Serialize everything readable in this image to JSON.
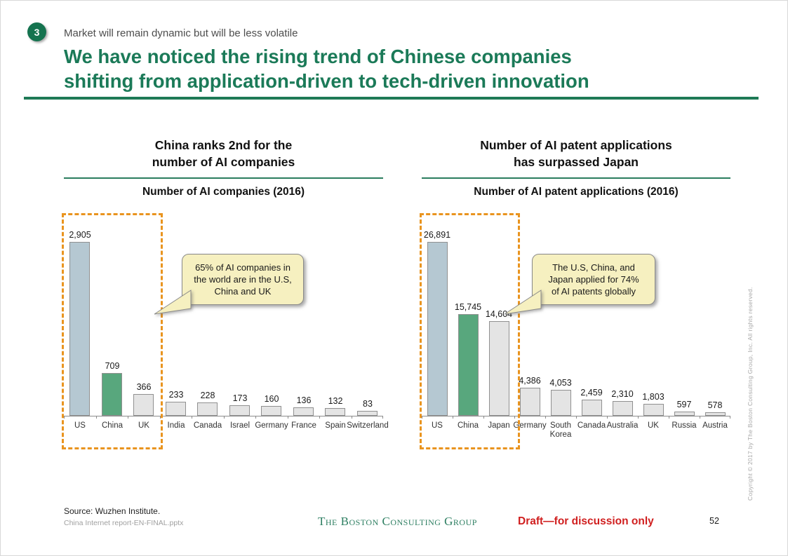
{
  "header": {
    "badge": "3",
    "eyebrow": "Market will remain dynamic but will be less volatile",
    "title_lines": [
      "We have noticed the rising trend of Chinese companies",
      "shifting from application-driven to tech-driven innovation"
    ]
  },
  "colors": {
    "accent_green": "#1b7a58",
    "rule_green": "#1e7a56",
    "bar_blue": "#b5c8d2",
    "bar_green": "#58a77d",
    "bar_gray": "#e4e4e4",
    "bar_border": "#909090",
    "highlight_dash_orange": "#e9941f",
    "callout_bg": "#f6f0c0",
    "draft_red": "#d01f1f"
  },
  "chart_data": [
    {
      "type": "bar",
      "title": "China ranks 2nd for the number of AI companies",
      "heading_lines": [
        "China ranks 2nd for the",
        "number of AI companies"
      ],
      "axis_title": "Number of AI companies (2016)",
      "xlabel": "",
      "ylabel": "",
      "categories": [
        "US",
        "China",
        "UK",
        "India",
        "Canada",
        "Israel",
        "Germany",
        "France",
        "Spain",
        "Switzerland"
      ],
      "values": [
        2905,
        709,
        366,
        233,
        228,
        173,
        160,
        136,
        132,
        83
      ],
      "value_labels": [
        "2,905",
        "709",
        "366",
        "233",
        "228",
        "173",
        "160",
        "136",
        "132",
        "83"
      ],
      "ylim": [
        0,
        2905
      ],
      "grid": false,
      "highlight_count": 3,
      "callout": "65% of AI companies in the world are in the U.S, China and UK",
      "callout_lines": [
        "65% of AI companies in",
        "the world are in the U.S,",
        "China and UK"
      ]
    },
    {
      "type": "bar",
      "title": "Number of AI patent applications has surpassed Japan",
      "heading_lines": [
        "Number of AI patent applications",
        "has surpassed Japan"
      ],
      "axis_title": "Number of AI patent applications (2016)",
      "xlabel": "",
      "ylabel": "",
      "categories": [
        "US",
        "China",
        "Japan",
        "Germany",
        "South\nKorea",
        "Canada",
        "Australia",
        "UK",
        "Russia",
        "Austria"
      ],
      "values": [
        26891,
        15745,
        14604,
        4386,
        4053,
        2459,
        2310,
        1803,
        597,
        578
      ],
      "value_labels": [
        "26,891",
        "15,745",
        "14,604",
        "4,386",
        "4,053",
        "2,459",
        "2,310",
        "1,803",
        "597",
        "578"
      ],
      "ylim": [
        0,
        26891
      ],
      "grid": false,
      "highlight_count": 3,
      "callout": "The U.S, China, and Japan applied for 74% of AI patents globally",
      "callout_lines": [
        "The U.S, China, and",
        "Japan applied for 74%",
        "of AI patents globally"
      ]
    }
  ],
  "footer": {
    "source": "Source: Wuzhen Institute.",
    "file_name": "China Internet report-EN-FINAL.pptx",
    "logo_text": "The Boston Consulting Group",
    "draft_note": "Draft—for discussion only",
    "page_number": "52"
  },
  "sidebar": {
    "copyright_vertical": "Copyright © 2017 by The Boston Consulting Group, Inc. All rights reserved."
  }
}
